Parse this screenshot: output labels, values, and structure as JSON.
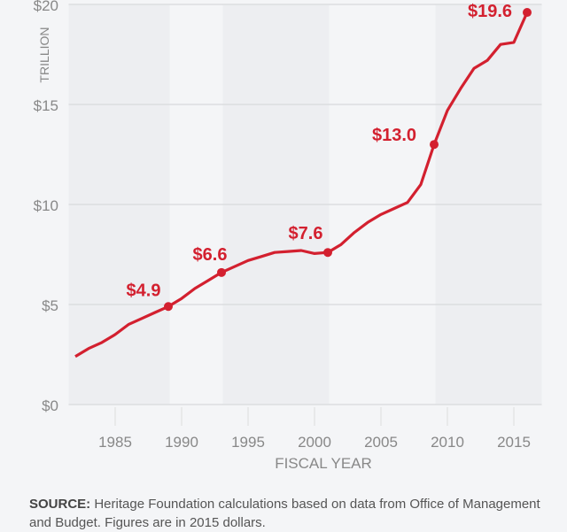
{
  "chart_data": {
    "type": "line",
    "title": "",
    "xlabel": "FISCAL YEAR",
    "ylabel": "TRILLION",
    "xlim": [
      1981.5,
      2017.1
    ],
    "ylim": [
      0,
      20
    ],
    "x_ticks": [
      1985,
      1990,
      1995,
      2000,
      2005,
      2010,
      2015
    ],
    "x_tick_labels": [
      "1985",
      "1990",
      "1995",
      "2000",
      "2005",
      "2010",
      "2015"
    ],
    "y_ticks": [
      0,
      5,
      10,
      15,
      20
    ],
    "y_tick_labels": [
      "$0",
      "$5",
      "$10",
      "$15",
      "$20"
    ],
    "grid": "horizontal",
    "shaded_bands": [
      [
        1981.5,
        1989.1
      ],
      [
        1993.1,
        2001.1
      ],
      [
        2009.1,
        2017.1
      ]
    ],
    "colors": {
      "line": "#d3202f",
      "background": "#f4f5f7",
      "band": "#edeef1",
      "grid": "#dcdde0"
    },
    "x": [
      1982,
      1983,
      1984,
      1985,
      1986,
      1987,
      1988,
      1989,
      1990,
      1991,
      1992,
      1993,
      1994,
      1995,
      1996,
      1997,
      1998,
      1999,
      2000,
      2001,
      2002,
      2003,
      2004,
      2005,
      2006,
      2007,
      2008,
      2009,
      2010,
      2011,
      2012,
      2013,
      2014,
      2015,
      2016
    ],
    "series": [
      {
        "values": [
          2.4,
          2.8,
          3.1,
          3.5,
          4.0,
          4.3,
          4.6,
          4.9,
          5.3,
          5.8,
          6.2,
          6.6,
          6.9,
          7.2,
          7.4,
          7.6,
          7.65,
          7.7,
          7.55,
          7.6,
          8.0,
          8.6,
          9.1,
          9.5,
          9.8,
          10.1,
          11.0,
          13.0,
          14.7,
          15.8,
          16.8,
          17.2,
          18.0,
          18.1,
          19.6
        ]
      }
    ],
    "annotations": [
      {
        "x": 1989,
        "y": 4.9,
        "label": "$4.9"
      },
      {
        "x": 1993,
        "y": 6.6,
        "label": "$6.6"
      },
      {
        "x": 2001,
        "y": 7.6,
        "label": "$7.6"
      },
      {
        "x": 2009,
        "y": 13.0,
        "label": "$13.0"
      },
      {
        "x": 2016,
        "y": 19.6,
        "label": "$19.6"
      }
    ]
  },
  "source": {
    "label": "SOURCE:",
    "text": " Heritage Foundation calculations based on data from Office of Management and Budget. Figures are in 2015 dollars."
  }
}
